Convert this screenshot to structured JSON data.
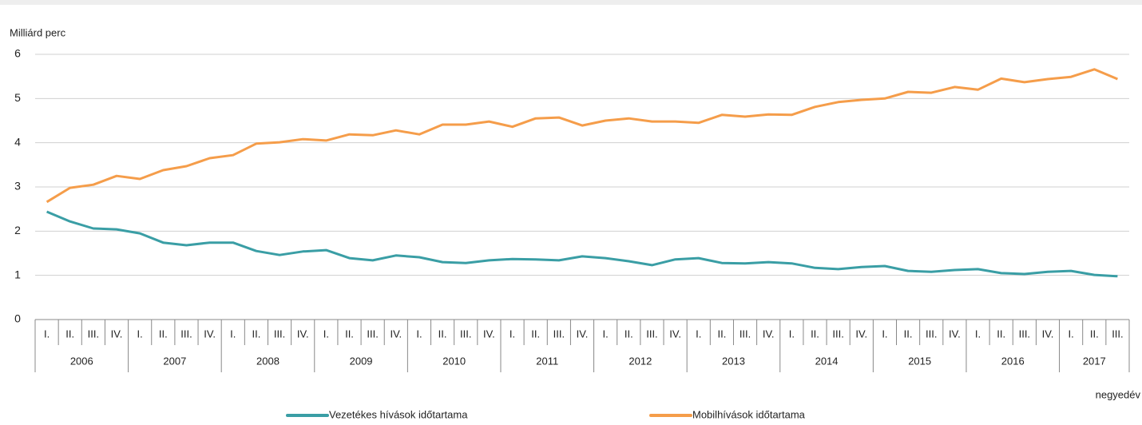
{
  "chart_data": {
    "type": "line",
    "y_axis_label": "Milliárd perc",
    "x_axis_label": "negyedév",
    "categories": [
      "I.",
      "II.",
      "III.",
      "IV.",
      "I.",
      "II.",
      "III.",
      "IV.",
      "I.",
      "II.",
      "III.",
      "IV.",
      "I.",
      "II.",
      "III.",
      "IV.",
      "I.",
      "II.",
      "III.",
      "IV.",
      "I.",
      "II.",
      "III.",
      "IV.",
      "I.",
      "II.",
      "III.",
      "IV.",
      "I.",
      "II.",
      "III.",
      "IV.",
      "I.",
      "II.",
      "III.",
      "IV.",
      "I.",
      "II.",
      "III.",
      "IV.",
      "I.",
      "II.",
      "III.",
      "IV.",
      "I.",
      "II.",
      "III."
    ],
    "years": [
      "2006",
      "2007",
      "2008",
      "2009",
      "2010",
      "2011",
      "2012",
      "2013",
      "2014",
      "2015",
      "2016",
      "2017"
    ],
    "series": [
      {
        "name": "Vezetékes hívások időtartama",
        "color": "#3a9ea5",
        "values": [
          2.44,
          2.22,
          2.06,
          2.04,
          1.95,
          1.74,
          1.68,
          1.74,
          1.74,
          1.55,
          1.46,
          1.54,
          1.57,
          1.39,
          1.34,
          1.45,
          1.41,
          1.3,
          1.28,
          1.34,
          1.37,
          1.36,
          1.34,
          1.43,
          1.39,
          1.32,
          1.23,
          1.36,
          1.39,
          1.28,
          1.27,
          1.3,
          1.27,
          1.17,
          1.14,
          1.19,
          1.21,
          1.1,
          1.08,
          1.12,
          1.14,
          1.05,
          1.03,
          1.08,
          1.1,
          1.01,
          0.98
        ]
      },
      {
        "name": "Mobilhívások időtartama",
        "color": "#f59d4a",
        "values": [
          2.66,
          2.98,
          3.05,
          3.25,
          3.18,
          3.38,
          3.47,
          3.65,
          3.72,
          3.98,
          4.01,
          4.08,
          4.05,
          4.19,
          4.17,
          4.28,
          4.19,
          4.41,
          4.41,
          4.48,
          4.36,
          4.55,
          4.57,
          4.39,
          4.5,
          4.55,
          4.48,
          4.48,
          4.45,
          4.63,
          4.59,
          4.64,
          4.63,
          4.81,
          4.92,
          4.97,
          5.0,
          5.15,
          5.13,
          5.26,
          5.2,
          5.45,
          5.37,
          5.44,
          5.49,
          5.66,
          5.44
        ]
      }
    ],
    "ylim": [
      0,
      6
    ],
    "yticks": [
      0,
      1,
      2,
      3,
      4,
      5,
      6
    ],
    "grid": true
  }
}
